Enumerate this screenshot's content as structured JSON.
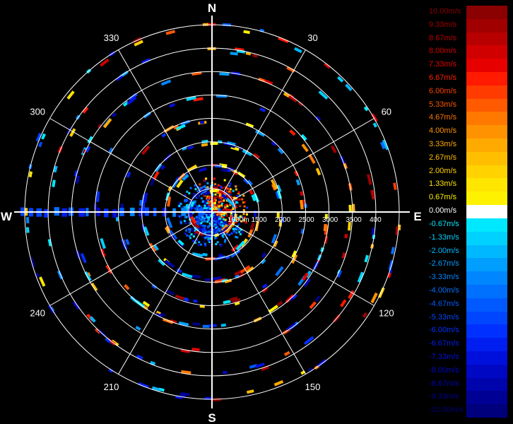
{
  "compass": {
    "north": "N",
    "east": "E",
    "south": "S",
    "west": "W"
  },
  "azimuth_labels": [
    {
      "deg": 30,
      "text": "30"
    },
    {
      "deg": 60,
      "text": "60"
    },
    {
      "deg": 120,
      "text": "120"
    },
    {
      "deg": 150,
      "text": "150"
    },
    {
      "deg": 210,
      "text": "210"
    },
    {
      "deg": 240,
      "text": "240"
    },
    {
      "deg": 300,
      "text": "300"
    },
    {
      "deg": 330,
      "text": "330"
    }
  ],
  "range_labels": [
    "1000m",
    "1500",
    "2000",
    "2500",
    "3000",
    "3500",
    "400"
  ],
  "legend": [
    {
      "label": "10.00m/s",
      "color": "#8b0000",
      "text_color": "#8b0000"
    },
    {
      "label": "9.33m/s",
      "color": "#a00000",
      "text_color": "#a50000"
    },
    {
      "label": "8.67m/s",
      "color": "#b80000",
      "text_color": "#bb0000"
    },
    {
      "label": "8.00m/s",
      "color": "#d00000",
      "text_color": "#d40000"
    },
    {
      "label": "7.33m/s",
      "color": "#e60000",
      "text_color": "#e60000"
    },
    {
      "label": "6.67m/s",
      "color": "#ff1a00",
      "text_color": "#ff2200"
    },
    {
      "label": "6.00m/s",
      "color": "#ff3b00",
      "text_color": "#ff4000"
    },
    {
      "label": "5.33m/s",
      "color": "#ff5a00",
      "text_color": "#ff5a00"
    },
    {
      "label": "4.67m/s",
      "color": "#ff7800",
      "text_color": "#ff7800"
    },
    {
      "label": "4.00m/s",
      "color": "#ff9200",
      "text_color": "#ff9200"
    },
    {
      "label": "3.33m/s",
      "color": "#ffaa00",
      "text_color": "#ffaa00"
    },
    {
      "label": "2.67m/s",
      "color": "#ffbf00",
      "text_color": "#ffbf00"
    },
    {
      "label": "2.00m/s",
      "color": "#ffd200",
      "text_color": "#ffd200"
    },
    {
      "label": "1.33m/s",
      "color": "#ffe600",
      "text_color": "#ffe600"
    },
    {
      "label": "0.67m/s",
      "color": "#fff200",
      "text_color": "#fff200"
    },
    {
      "label": "0.00m/s",
      "color": "#ffffff",
      "text_color": "#ffffff"
    },
    {
      "label": "-0.67m/s",
      "color": "#00e8ff",
      "text_color": "#00e8ff"
    },
    {
      "label": "-1.33m/s",
      "color": "#00d2ff",
      "text_color": "#00d2ff"
    },
    {
      "label": "-2.00m/s",
      "color": "#00b8ff",
      "text_color": "#00b8ff"
    },
    {
      "label": "-2.67m/s",
      "color": "#009eff",
      "text_color": "#009eff"
    },
    {
      "label": "-3.33m/s",
      "color": "#0086ff",
      "text_color": "#0086ff"
    },
    {
      "label": "-4.00m/s",
      "color": "#0070ff",
      "text_color": "#0070ff"
    },
    {
      "label": "-4.67m/s",
      "color": "#005aff",
      "text_color": "#005aff"
    },
    {
      "label": "-5.33m/s",
      "color": "#0046ff",
      "text_color": "#0046ff"
    },
    {
      "label": "-6.00m/s",
      "color": "#0030ff",
      "text_color": "#0030ff"
    },
    {
      "label": "-6.67m/s",
      "color": "#001ef0",
      "text_color": "#001ef0"
    },
    {
      "label": "-7.33m/s",
      "color": "#0010dc",
      "text_color": "#0010dc"
    },
    {
      "label": "-8.00m/s",
      "color": "#0008c4",
      "text_color": "#0008c4"
    },
    {
      "label": "-8.67m/s",
      "color": "#0004ac",
      "text_color": "#0004ac"
    },
    {
      "label": "-9.33m/s",
      "color": "#000094",
      "text_color": "#000094"
    },
    {
      "label": "-10.00m/s",
      "color": "#00007c",
      "text_color": "#00007c"
    }
  ],
  "colors": {
    "background": "#000000",
    "grid": "#ffffff"
  }
}
